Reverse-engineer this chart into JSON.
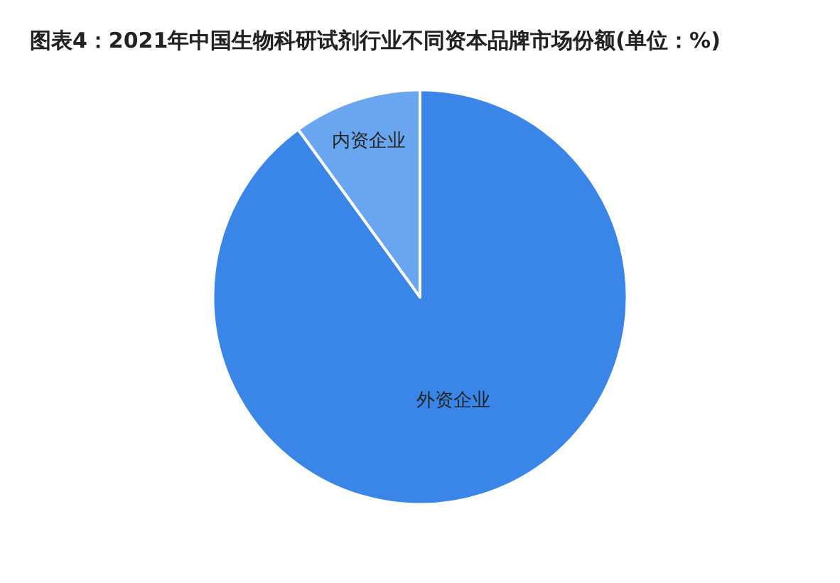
{
  "chart_data": {
    "type": "pie",
    "title": "图表4：2021年中国生物科研试剂行业不同资本品牌市场份额(单位：%)",
    "categories": [
      "外资企业",
      "内资企业"
    ],
    "values": [
      90,
      10
    ],
    "colors": [
      "#3a86e8",
      "#6aa6ef"
    ],
    "legend": false
  }
}
